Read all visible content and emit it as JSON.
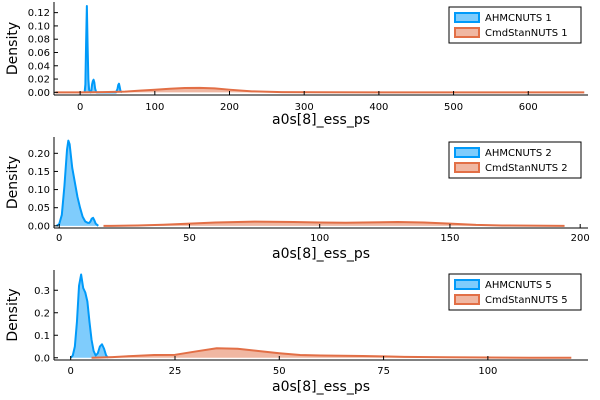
{
  "colors": {
    "series_a": "#009af9",
    "series_b": "#e26f46",
    "axis": "#000000",
    "background": "#ffffff"
  },
  "chart_data": [
    {
      "type": "area",
      "xlabel": "a0s[8]_ess_ps",
      "ylabel": "Density",
      "xlim": [
        -35,
        680
      ],
      "ylim": [
        -0.004,
        0.136
      ],
      "xticks": [
        0,
        100,
        200,
        300,
        400,
        500,
        600
      ],
      "yticks": [
        0.0,
        0.02,
        0.04,
        0.06,
        0.08,
        0.1,
        0.12
      ],
      "ytick_labels": [
        "0.00",
        "0.02",
        "0.04",
        "0.06",
        "0.08",
        "0.10",
        "0.12"
      ],
      "legend": "top-right",
      "grid": false,
      "series": [
        {
          "name": "AHMCNUTS 1",
          "color": "#009af9",
          "x": [
            6,
            7,
            8,
            9,
            10,
            11,
            12,
            13,
            14,
            15,
            16,
            17,
            18,
            19,
            20,
            21,
            22,
            24,
            26,
            30,
            40,
            48,
            50,
            51,
            52,
            53,
            54,
            56
          ],
          "y": [
            0.0,
            0.012,
            0.075,
            0.13,
            0.07,
            0.02,
            0.004,
            0.001,
            0.0,
            0.003,
            0.012,
            0.017,
            0.019,
            0.015,
            0.006,
            0.002,
            0.0,
            0.0,
            0.0,
            0.0,
            0.0,
            0.0,
            0.005,
            0.011,
            0.013,
            0.008,
            0.002,
            0.0
          ]
        },
        {
          "name": "CmdStanNUTS 1",
          "color": "#e26f46",
          "x": [
            -33,
            0,
            30,
            60,
            80,
            100,
            120,
            140,
            160,
            180,
            200,
            230,
            270,
            320,
            400,
            500,
            600,
            675
          ],
          "y": [
            0.0,
            0.0,
            0.0003,
            0.001,
            0.0025,
            0.004,
            0.0055,
            0.0065,
            0.0068,
            0.006,
            0.004,
            0.0015,
            0.0004,
            0.0001,
            0.0,
            0.0,
            0.0,
            0.0
          ]
        }
      ]
    },
    {
      "type": "area",
      "xlabel": "a0s[8]_ess_ps",
      "ylabel": "Density",
      "xlim": [
        -2,
        203
      ],
      "ylim": [
        -0.006,
        0.245
      ],
      "xticks": [
        0,
        50,
        100,
        150,
        200
      ],
      "yticks": [
        0.0,
        0.05,
        0.1,
        0.15,
        0.2
      ],
      "ytick_labels": [
        "0.00",
        "0.05",
        "0.10",
        "0.15",
        "0.20"
      ],
      "legend": "top-right",
      "grid": false,
      "series": [
        {
          "name": "AHMCNUTS 2",
          "color": "#009af9",
          "x": [
            -1,
            0,
            1,
            2,
            3,
            3.5,
            4,
            5,
            6,
            7,
            8,
            9,
            10,
            11,
            11.5,
            12,
            12.5,
            13,
            13.5,
            14,
            15
          ],
          "y": [
            0.0,
            0.005,
            0.03,
            0.11,
            0.21,
            0.235,
            0.225,
            0.16,
            0.12,
            0.08,
            0.05,
            0.025,
            0.012,
            0.008,
            0.008,
            0.012,
            0.02,
            0.022,
            0.015,
            0.006,
            0.0
          ]
        },
        {
          "name": "CmdStanNUTS 2",
          "color": "#e26f46",
          "x": [
            17,
            20,
            30,
            40,
            50,
            60,
            75,
            90,
            100,
            110,
            120,
            130,
            140,
            150,
            160,
            170,
            180,
            194
          ],
          "y": [
            0.0,
            0.0,
            0.001,
            0.003,
            0.006,
            0.009,
            0.0115,
            0.0105,
            0.009,
            0.0085,
            0.0095,
            0.0105,
            0.009,
            0.006,
            0.0025,
            0.001,
            0.0004,
            0.0
          ]
        }
      ]
    },
    {
      "type": "area",
      "xlabel": "a0s[8]_ess_ps",
      "ylabel": "Density",
      "xlim": [
        -4,
        124
      ],
      "ylim": [
        -0.01,
        0.39
      ],
      "xticks": [
        0,
        25,
        50,
        75,
        100
      ],
      "yticks": [
        0.0,
        0.1,
        0.2,
        0.3
      ],
      "ytick_labels": [
        "0.0",
        "0.1",
        "0.2",
        "0.3"
      ],
      "legend": "top-right",
      "grid": false,
      "series": [
        {
          "name": "AHMCNUTS 5",
          "color": "#009af9",
          "x": [
            0,
            0.5,
            1,
            1.5,
            2,
            2.5,
            3,
            3.5,
            4,
            4.5,
            5,
            5.5,
            6,
            6.5,
            7,
            7.5,
            8,
            8.5,
            9
          ],
          "y": [
            0.0,
            0.01,
            0.05,
            0.16,
            0.32,
            0.37,
            0.31,
            0.29,
            0.25,
            0.16,
            0.08,
            0.03,
            0.01,
            0.02,
            0.05,
            0.06,
            0.04,
            0.01,
            0.0
          ]
        },
        {
          "name": "CmdStanNUTS 5",
          "color": "#e26f46",
          "x": [
            5,
            10,
            15,
            20,
            25,
            30,
            35,
            40,
            45,
            50,
            55,
            60,
            65,
            70,
            75,
            80,
            90,
            100,
            110,
            120
          ],
          "y": [
            0.0,
            0.003,
            0.008,
            0.012,
            0.013,
            0.028,
            0.042,
            0.04,
            0.03,
            0.02,
            0.012,
            0.01,
            0.009,
            0.008,
            0.006,
            0.004,
            0.002,
            0.001,
            0.0,
            0.0
          ]
        }
      ]
    }
  ]
}
